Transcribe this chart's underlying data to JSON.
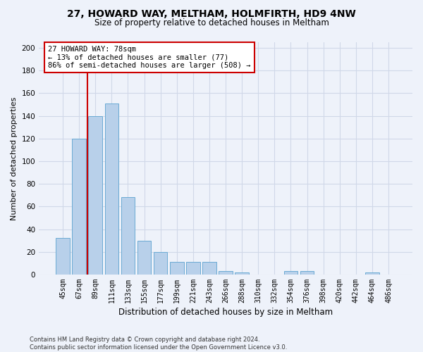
{
  "title_line1": "27, HOWARD WAY, MELTHAM, HOLMFIRTH, HD9 4NW",
  "title_line2": "Size of property relative to detached houses in Meltham",
  "xlabel": "Distribution of detached houses by size in Meltham",
  "ylabel": "Number of detached properties",
  "categories": [
    "45sqm",
    "67sqm",
    "89sqm",
    "111sqm",
    "133sqm",
    "155sqm",
    "177sqm",
    "199sqm",
    "221sqm",
    "243sqm",
    "266sqm",
    "288sqm",
    "310sqm",
    "332sqm",
    "354sqm",
    "376sqm",
    "398sqm",
    "420sqm",
    "442sqm",
    "464sqm",
    "486sqm"
  ],
  "values": [
    32,
    120,
    140,
    151,
    68,
    30,
    20,
    11,
    11,
    11,
    3,
    2,
    0,
    0,
    3,
    3,
    0,
    0,
    0,
    2,
    0
  ],
  "bar_color": "#b8d0ea",
  "bar_edgecolor": "#6aaad4",
  "vline_x": 1.5,
  "vline_color": "#cc0000",
  "annotation_text": "27 HOWARD WAY: 78sqm\n← 13% of detached houses are smaller (77)\n86% of semi-detached houses are larger (508) →",
  "annotation_box_color": "#ffffff",
  "annotation_box_edgecolor": "#cc0000",
  "ylim": [
    0,
    205
  ],
  "yticks": [
    0,
    20,
    40,
    60,
    80,
    100,
    120,
    140,
    160,
    180,
    200
  ],
  "footer_line1": "Contains HM Land Registry data © Crown copyright and database right 2024.",
  "footer_line2": "Contains public sector information licensed under the Open Government Licence v3.0.",
  "grid_color": "#d0d8e8",
  "background_color": "#eef2fa",
  "plot_bg_color": "#eef2fa",
  "title1_fontsize": 10,
  "title2_fontsize": 8.5,
  "ylabel_fontsize": 8,
  "xlabel_fontsize": 8.5,
  "tick_fontsize": 7,
  "annot_fontsize": 7.5,
  "footer_fontsize": 6
}
